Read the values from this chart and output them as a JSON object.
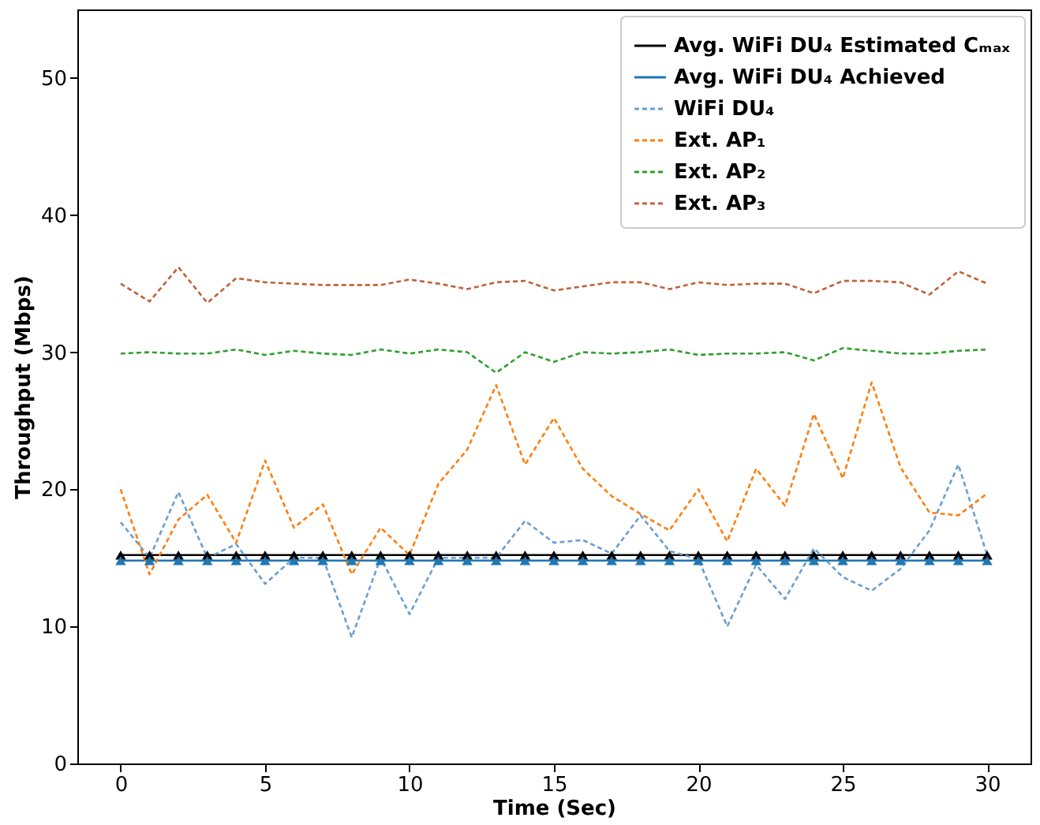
{
  "chart_data": {
    "type": "line",
    "xlabel": "Time (Sec)",
    "ylabel": "Throughput (Mbps)",
    "x": [
      0,
      1,
      2,
      3,
      4,
      5,
      6,
      7,
      8,
      9,
      10,
      11,
      12,
      13,
      14,
      15,
      16,
      17,
      18,
      19,
      20,
      21,
      22,
      23,
      24,
      25,
      26,
      27,
      28,
      29,
      30
    ],
    "xlim": [
      -1.5,
      31.5
    ],
    "xticks": [
      0,
      5,
      10,
      15,
      20,
      25,
      30
    ],
    "ylim": [
      0,
      55
    ],
    "yticks": [
      0,
      10,
      20,
      30,
      40,
      50
    ],
    "grid": false,
    "legend": "top right",
    "series": [
      {
        "name": "Avg. WiFi DU₄ Estimated Cₘₐₓ",
        "color": "#000000",
        "marker": "triangle",
        "line_style": "solid",
        "values": [
          15.2,
          15.2,
          15.2,
          15.2,
          15.2,
          15.2,
          15.2,
          15.2,
          15.2,
          15.2,
          15.2,
          15.2,
          15.2,
          15.2,
          15.2,
          15.2,
          15.2,
          15.2,
          15.2,
          15.2,
          15.2,
          15.2,
          15.2,
          15.2,
          15.2,
          15.2,
          15.2,
          15.2,
          15.2,
          15.2,
          15.2
        ]
      },
      {
        "name": "Avg. WiFi DU₄ Achieved",
        "color": "#1f77b4",
        "marker": "triangle",
        "line_style": "solid",
        "values": [
          14.8,
          14.8,
          14.8,
          14.8,
          14.8,
          14.8,
          14.8,
          14.8,
          14.8,
          14.8,
          14.8,
          14.8,
          14.8,
          14.8,
          14.8,
          14.8,
          14.8,
          14.8,
          14.8,
          14.8,
          14.8,
          14.8,
          14.8,
          14.8,
          14.8,
          14.8,
          14.8,
          14.8,
          14.8,
          14.8,
          14.8
        ]
      },
      {
        "name": "WiFi DU₄",
        "color": "#6a9fd0",
        "marker": "none",
        "line_style": "dashed",
        "values": [
          17.6,
          15,
          19.8,
          15,
          16,
          13.1,
          15,
          15,
          9.2,
          15,
          10.9,
          15,
          15,
          15,
          17.7,
          16.1,
          16.3,
          15.3,
          18.1,
          15.5,
          14.9,
          10,
          14.5,
          12,
          15.7,
          13.6,
          12.6,
          14.2,
          17,
          21.8,
          15.2
        ]
      },
      {
        "name": "Ext. AP₁",
        "color": "#ff7f0e",
        "marker": "none",
        "line_style": "dashed",
        "values": [
          20,
          13.8,
          17.8,
          19.6,
          16.1,
          22.1,
          17.2,
          18.9,
          13.8,
          17.2,
          15.2,
          20.4,
          22.9,
          27.6,
          21.8,
          25.2,
          21.5,
          19.5,
          18.2,
          17,
          20,
          16.2,
          21.5,
          18.8,
          25.5,
          20.8,
          27.8,
          21.6,
          18.3,
          18.1,
          19.7
        ]
      },
      {
        "name": "Ext. AP₂",
        "color": "#2ca02c",
        "marker": "none",
        "line_style": "dashed",
        "values": [
          29.9,
          30,
          29.9,
          29.9,
          30.2,
          29.8,
          30.1,
          29.9,
          29.8,
          30.2,
          29.9,
          30.2,
          30,
          28.5,
          30,
          29.3,
          30,
          29.9,
          30,
          30.2,
          29.8,
          29.9,
          29.9,
          30,
          29.4,
          30.3,
          30.1,
          29.9,
          29.9,
          30.1,
          30.2
        ]
      },
      {
        "name": "Ext. AP₃",
        "color": "#c0623a",
        "marker": "none",
        "line_style": "dashed",
        "values": [
          35,
          33.7,
          36.2,
          33.6,
          35.4,
          35.1,
          35,
          34.9,
          34.9,
          34.9,
          35.3,
          35,
          34.6,
          35.1,
          35.2,
          34.5,
          34.8,
          35.1,
          35.1,
          34.6,
          35.1,
          34.9,
          35,
          35,
          34.3,
          35.2,
          35.2,
          35.1,
          34.2,
          35.9,
          35
        ]
      }
    ]
  }
}
